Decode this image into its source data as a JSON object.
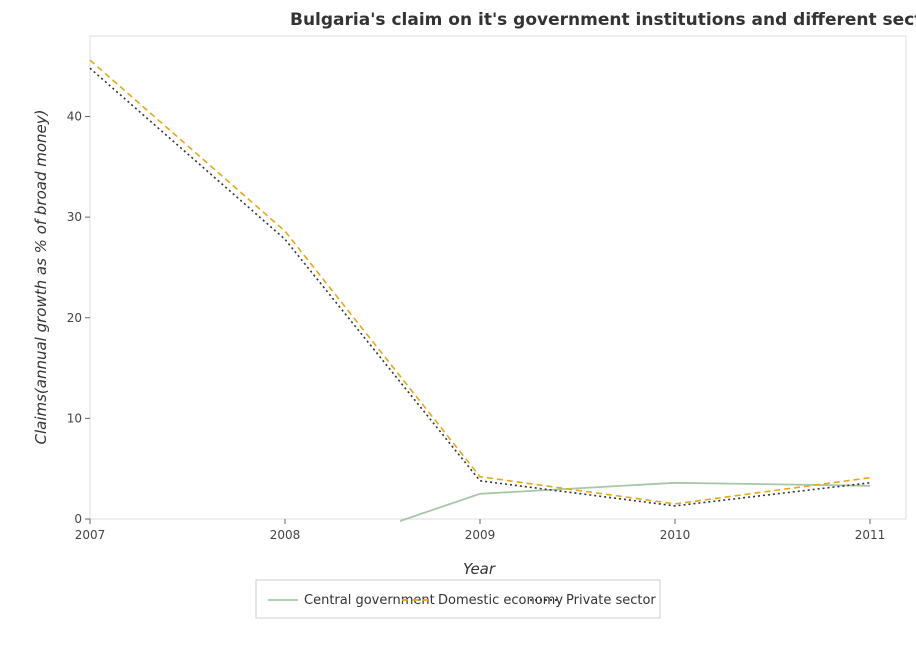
{
  "chart_data": {
    "type": "line",
    "title": "Bulgaria's claim on it's government institutions and different sectors",
    "xlabel": "Year",
    "ylabel": "Claims(annual growth as % of broad money)",
    "categories": [
      "2007",
      "2008",
      "2009",
      "2010",
      "2011"
    ],
    "ylim": [
      0,
      48
    ],
    "yticks": [
      "0",
      "10",
      "20",
      "30",
      "40"
    ],
    "grid": false,
    "legend_position": "bottom-center",
    "series": [
      {
        "name": "Central government",
        "color": "#a6c8a6",
        "dash": "solid",
        "values": [
          null,
          null,
          2.5,
          3.6,
          3.3
        ]
      },
      {
        "name": "Domestic economy",
        "color": "#e6a817",
        "dash": "dashed",
        "values": [
          45.6,
          28.6,
          4.2,
          1.5,
          4.1
        ]
      },
      {
        "name": "Private sector",
        "color": "#333333",
        "dash": "dotted",
        "values": [
          44.8,
          27.8,
          3.8,
          1.3,
          3.6
        ]
      }
    ]
  }
}
